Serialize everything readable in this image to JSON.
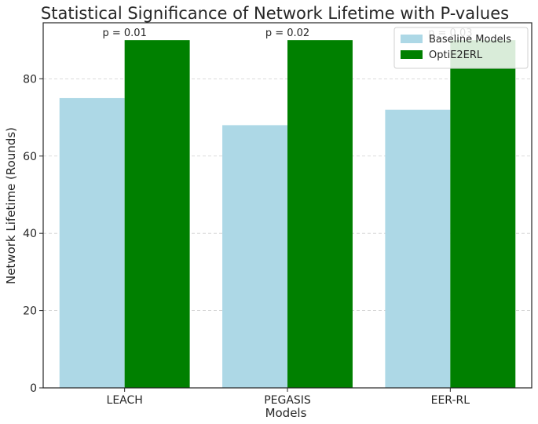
{
  "chart_data": {
    "type": "bar",
    "title": "Statistical Significance of Network Lifetime with P-values",
    "xlabel": "Models",
    "ylabel": "Network Lifetime (Rounds)",
    "categories": [
      "LEACH",
      "PEGASIS",
      "EER-RL"
    ],
    "series": [
      {
        "name": "Baseline Models",
        "values": [
          75,
          68,
          72
        ],
        "color": "#add8e6"
      },
      {
        "name": "OptiE2ERL",
        "values": [
          90,
          90,
          90
        ],
        "color": "#008000"
      }
    ],
    "annotations": [
      "p = 0.01",
      "p = 0.02",
      "p = 0.03"
    ],
    "ylim": [
      0,
      94.5
    ],
    "yticks": [
      "0",
      "20",
      "40",
      "60",
      "80"
    ],
    "grid": true,
    "legend_position": "top-right"
  }
}
